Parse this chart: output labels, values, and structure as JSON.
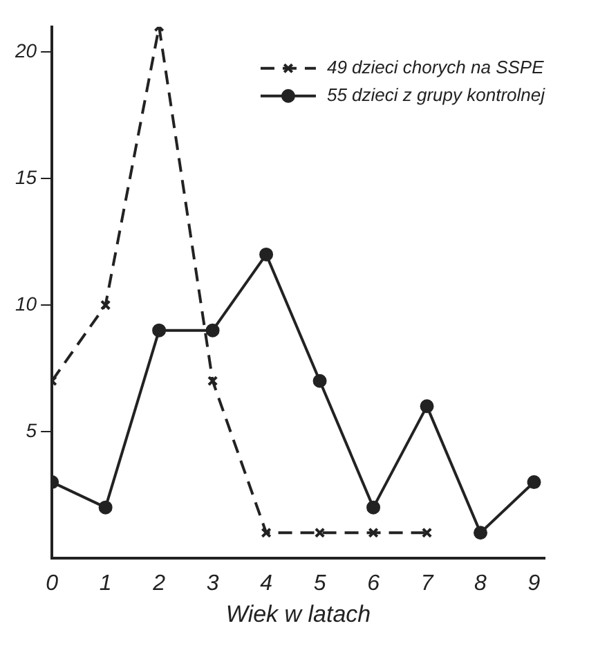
{
  "chart_data": {
    "type": "line",
    "xlabel": "Wiek w latach",
    "x": [
      0,
      1,
      2,
      3,
      4,
      5,
      6,
      7,
      8,
      9
    ],
    "series": [
      {
        "name": "49 dzieci chorych na SSPE",
        "color": "#222222",
        "values": [
          7,
          10,
          21,
          7,
          1,
          1,
          1,
          1,
          null,
          null
        ],
        "line_style": "dashed",
        "marker": "cross"
      },
      {
        "name": "55 dzieci z grupy kontrolnej",
        "color": "#222222",
        "values": [
          3,
          2,
          9,
          9,
          12,
          7,
          2,
          6,
          1,
          3
        ],
        "line_style": "solid",
        "marker": "circle"
      }
    ],
    "xlim": [
      0,
      9.2
    ],
    "xticks": [
      0,
      1,
      2,
      3,
      4,
      5,
      6,
      7,
      8,
      9
    ],
    "ylim": [
      0,
      21
    ],
    "yticks": [
      5,
      10,
      15,
      20
    ],
    "grid": false,
    "legend": "top right"
  }
}
